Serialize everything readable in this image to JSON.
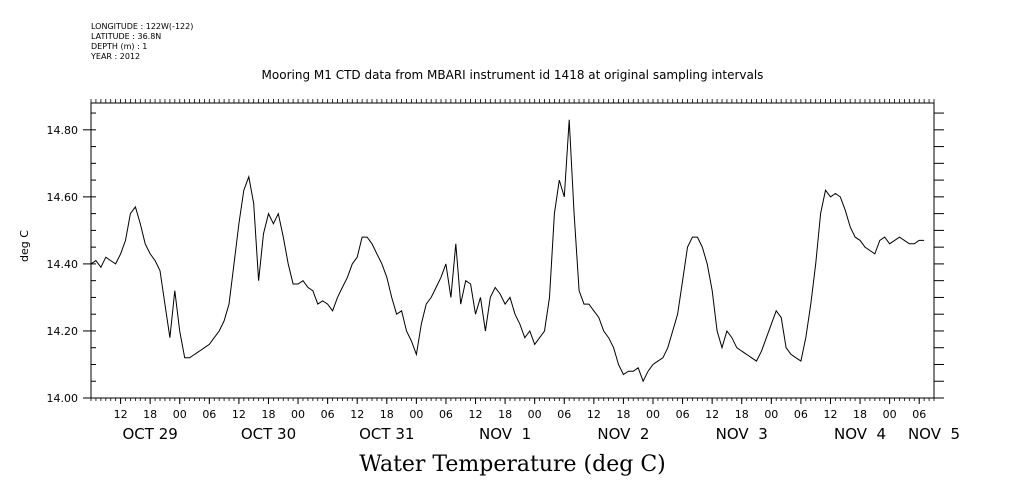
{
  "meta": {
    "longitude": "LONGITUDE : 122W(-122)",
    "latitude": "LATITUDE : 36.8N",
    "depth": "DEPTH (m) : 1",
    "year": "YEAR : 2012"
  },
  "chart_data": {
    "type": "line",
    "title": "Mooring M1 CTD data from MBARI instrument id 1418 at original sampling intervals",
    "xlabel": "Water Temperature (deg C)",
    "ylabel": "deg C",
    "xlim": [
      0,
      171
    ],
    "ylim": [
      14.0,
      14.88
    ],
    "y_ticks": [
      "14.00",
      "14.20",
      "14.40",
      "14.60",
      "14.80"
    ],
    "y_tick_values": [
      14.0,
      14.2,
      14.4,
      14.6,
      14.8
    ],
    "x_hour_ticks": [
      {
        "x": 6,
        "label": "12"
      },
      {
        "x": 12,
        "label": "18"
      },
      {
        "x": 18,
        "label": "00"
      },
      {
        "x": 24,
        "label": "06"
      },
      {
        "x": 30,
        "label": "12"
      },
      {
        "x": 36,
        "label": "18"
      },
      {
        "x": 42,
        "label": "00"
      },
      {
        "x": 48,
        "label": "06"
      },
      {
        "x": 54,
        "label": "12"
      },
      {
        "x": 60,
        "label": "18"
      },
      {
        "x": 66,
        "label": "00"
      },
      {
        "x": 72,
        "label": "06"
      },
      {
        "x": 78,
        "label": "12"
      },
      {
        "x": 84,
        "label": "18"
      },
      {
        "x": 90,
        "label": "00"
      },
      {
        "x": 96,
        "label": "06"
      },
      {
        "x": 102,
        "label": "12"
      },
      {
        "x": 108,
        "label": "18"
      },
      {
        "x": 114,
        "label": "00"
      },
      {
        "x": 120,
        "label": "06"
      },
      {
        "x": 126,
        "label": "12"
      },
      {
        "x": 132,
        "label": "18"
      },
      {
        "x": 138,
        "label": "00"
      },
      {
        "x": 144,
        "label": "06"
      },
      {
        "x": 150,
        "label": "12"
      },
      {
        "x": 156,
        "label": "18"
      },
      {
        "x": 162,
        "label": "00"
      },
      {
        "x": 168,
        "label": "06"
      }
    ],
    "x_date_ticks": [
      {
        "x": 12,
        "label": "OCT 29"
      },
      {
        "x": 36,
        "label": "OCT 30"
      },
      {
        "x": 60,
        "label": "OCT 31"
      },
      {
        "x": 84,
        "label": "NOV  1"
      },
      {
        "x": 108,
        "label": "NOV  2"
      },
      {
        "x": 132,
        "label": "NOV  3"
      },
      {
        "x": 156,
        "label": "NOV  4"
      },
      {
        "x": 171,
        "label": "NOV  5"
      }
    ],
    "series": [
      {
        "x": [
          0,
          1,
          2,
          3,
          4,
          5,
          6,
          7,
          8,
          9,
          10,
          11,
          12,
          13,
          14,
          15,
          16,
          17,
          18,
          19,
          20,
          21,
          22,
          23,
          24,
          25,
          26,
          27,
          28,
          29,
          30,
          31,
          32,
          33,
          34,
          35,
          36,
          37,
          38,
          39,
          40,
          41,
          42,
          43,
          44,
          45,
          46,
          47,
          48,
          49,
          50,
          51,
          52,
          53,
          54,
          55,
          56,
          57,
          58,
          59,
          60,
          61,
          62,
          63,
          64,
          65,
          66,
          67,
          68,
          69,
          70,
          71,
          72,
          73,
          74,
          75,
          76,
          77,
          78,
          79,
          80,
          81,
          82,
          83,
          84,
          85,
          86,
          87,
          88,
          89,
          90,
          91,
          92,
          93,
          94,
          95,
          96,
          97,
          98,
          99,
          100,
          101,
          102,
          103,
          104,
          105,
          106,
          107,
          108,
          109,
          110,
          111,
          112,
          113,
          114,
          115,
          116,
          117,
          118,
          119,
          120,
          121,
          122,
          123,
          124,
          125,
          126,
          127,
          128,
          129,
          130,
          131,
          132,
          133,
          134,
          135,
          136,
          137,
          138,
          139,
          140,
          141,
          142,
          143,
          144,
          145,
          146,
          147,
          148,
          149,
          150,
          151,
          152,
          153,
          154,
          155,
          156,
          157,
          158,
          159,
          160,
          161,
          162,
          163,
          164,
          165,
          166,
          167,
          168,
          169
        ],
        "y": [
          14.4,
          14.41,
          14.39,
          14.42,
          14.41,
          14.4,
          14.43,
          14.47,
          14.55,
          14.57,
          14.52,
          14.46,
          14.43,
          14.41,
          14.38,
          14.28,
          14.18,
          14.32,
          14.2,
          14.12,
          14.12,
          14.13,
          14.14,
          14.15,
          14.16,
          14.18,
          14.2,
          14.23,
          14.28,
          14.4,
          14.52,
          14.62,
          14.66,
          14.58,
          14.35,
          14.49,
          14.55,
          14.52,
          14.55,
          14.48,
          14.4,
          14.34,
          14.34,
          14.35,
          14.33,
          14.32,
          14.28,
          14.29,
          14.28,
          14.26,
          14.3,
          14.33,
          14.36,
          14.4,
          14.42,
          14.48,
          14.48,
          14.46,
          14.43,
          14.4,
          14.36,
          14.3,
          14.25,
          14.26,
          14.2,
          14.17,
          14.13,
          14.22,
          14.28,
          14.3,
          14.33,
          14.36,
          14.4,
          14.3,
          14.46,
          14.28,
          14.35,
          14.34,
          14.25,
          14.3,
          14.2,
          14.3,
          14.33,
          14.31,
          14.28,
          14.3,
          14.25,
          14.22,
          14.18,
          14.2,
          14.16,
          14.18,
          14.2,
          14.3,
          14.55,
          14.65,
          14.6,
          14.83,
          14.55,
          14.32,
          14.28,
          14.28,
          14.26,
          14.24,
          14.2,
          14.18,
          14.15,
          14.1,
          14.07,
          14.08,
          14.08,
          14.09,
          14.05,
          14.08,
          14.1,
          14.11,
          14.12,
          14.15,
          14.2,
          14.25,
          14.35,
          14.45,
          14.48,
          14.48,
          14.45,
          14.4,
          14.32,
          14.2,
          14.15,
          14.2,
          14.18,
          14.15,
          14.14,
          14.13,
          14.12,
          14.11,
          14.14,
          14.18,
          14.22,
          14.26,
          14.24,
          14.15,
          14.13,
          14.12,
          14.11,
          14.18,
          14.28,
          14.4,
          14.55,
          14.62,
          14.6,
          14.61,
          14.6,
          14.56,
          14.51,
          14.48,
          14.47,
          14.45,
          14.44,
          14.43,
          14.47,
          14.48,
          14.46,
          14.47,
          14.48,
          14.47,
          14.46,
          14.46,
          14.47,
          14.47
        ]
      }
    ],
    "grid": false
  }
}
